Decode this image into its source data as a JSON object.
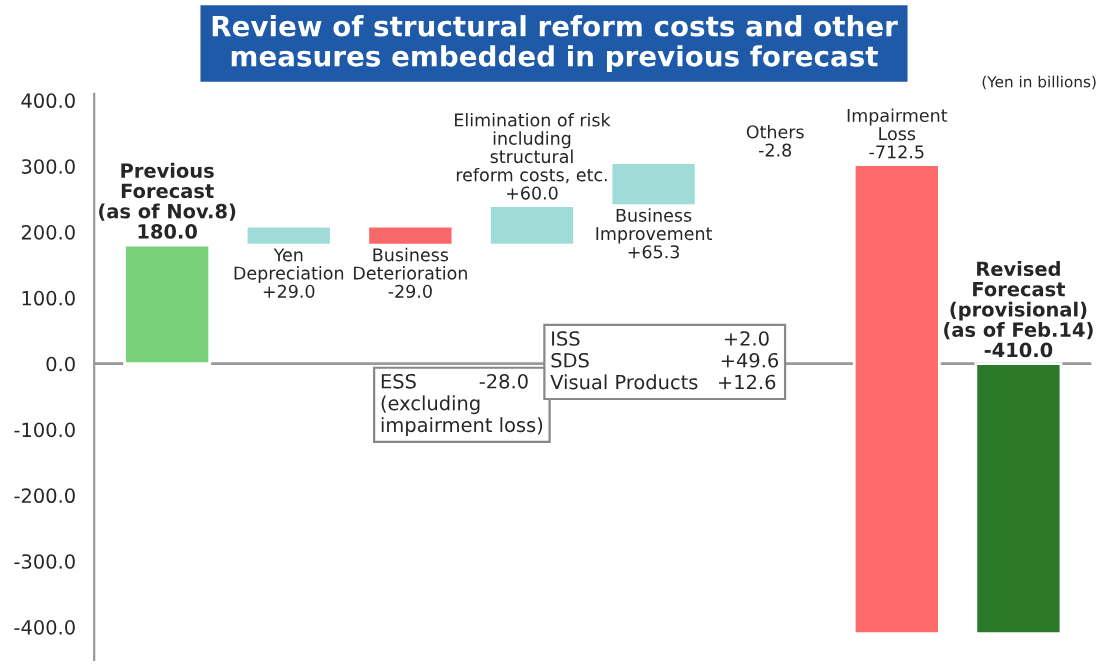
{
  "chart_data": {
    "type": "bar",
    "title": "Review of structural reform costs and other\nmeasures embedded in previous forecast",
    "categories": [
      "Previous\nForecast\n(as of Nov.8)",
      "Yen\nDepreciation",
      "Business\nDeterioration",
      "Elimination of risk\nincluding\nstructural\nreform costs, etc.",
      "Business\nImprovement",
      "Others",
      "Impairment\nLoss",
      "Revised\nForecast\n(provisional)\n(as of Feb.14)"
    ],
    "base": [
      0,
      180,
      209,
      180,
      240,
      305.3,
      302.5,
      0
    ],
    "values": [
      180,
      29,
      -29,
      60,
      65.3,
      -2.8,
      -712.5,
      -410
    ],
    "value_labels": [
      "180.0",
      "+29.0",
      "-29.0",
      "+60.0",
      "+65.3",
      "-2.8",
      "-712.5",
      "-410.0"
    ],
    "colors": [
      "#77d27a",
      "#9fdcd8",
      "#f86868",
      "#9fdcd8",
      "#9fdcd8",
      "#8c8c8c",
      "#ff6b6b",
      "#2a7a2a"
    ],
    "ylim": [
      -450,
      410
    ],
    "yticks": [
      {
        "value": -400,
        "label": "-400.0"
      },
      {
        "value": -300,
        "label": "-300.0"
      },
      {
        "value": -200,
        "label": "-200.0"
      },
      {
        "value": -100,
        "label": "-100.0"
      },
      {
        "value": 0,
        "label": "0.0"
      },
      {
        "value": 100,
        "label": "100.0"
      },
      {
        "value": 200,
        "label": "200.0"
      },
      {
        "value": 300,
        "label": "300.0"
      },
      {
        "value": 400,
        "label": "400.0"
      }
    ],
    "tick_labels": "y",
    "ref_lines": [
      {
        "axis": "y",
        "value": 0,
        "color": "#999999"
      }
    ],
    "annotations": [
      "(Yen in billions)",
      "ESS          -28.0\n(excluding\nimpairment loss)",
      "ISS                       +2.0\nSDS                     +49.6\nVisual Products   +12.6"
    ],
    "grid": false
  }
}
